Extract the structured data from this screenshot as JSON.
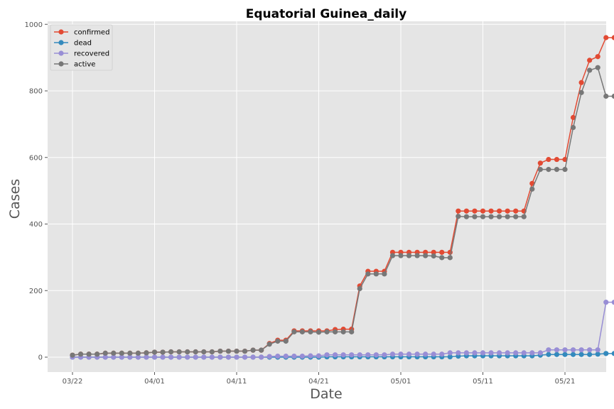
{
  "chart_data": {
    "type": "line",
    "title": "Equatorial Guinea_daily",
    "xlabel": "Date",
    "ylabel": "Cases",
    "ylim": [
      -50,
      1000
    ],
    "yticks": [
      0,
      200,
      400,
      600,
      800,
      1000
    ],
    "x_start": "03/22",
    "x_tick_labels": [
      {
        "label": "03/22",
        "index": 0
      },
      {
        "label": "04/01",
        "index": 10
      },
      {
        "label": "04/11",
        "index": 20
      },
      {
        "label": "04/21",
        "index": 30
      },
      {
        "label": "05/01",
        "index": 40
      },
      {
        "label": "05/11",
        "index": 50
      },
      {
        "label": "05/21",
        "index": 60
      }
    ],
    "grid": true,
    "legend_position": "top-left",
    "series": [
      {
        "name": "confirmed",
        "color": "#E24A33",
        "values": [
          6,
          9,
          9,
          9,
          12,
          12,
          12,
          12,
          12,
          13,
          15,
          15,
          16,
          16,
          16,
          16,
          16,
          16,
          18,
          18,
          18,
          18,
          21,
          21,
          41,
          51,
          51,
          79,
          79,
          79,
          79,
          79,
          83,
          84,
          84,
          214,
          258,
          258,
          258,
          315,
          315,
          315,
          315,
          315,
          315,
          315,
          315,
          439,
          439,
          439,
          439,
          439,
          439,
          439,
          439,
          439,
          522,
          583,
          594,
          594,
          594,
          720,
          825,
          892,
          903,
          960,
          960
        ]
      },
      {
        "name": "dead",
        "color": "#348ABD",
        "values": [
          0,
          0,
          0,
          0,
          0,
          0,
          0,
          0,
          0,
          0,
          0,
          0,
          0,
          0,
          0,
          0,
          0,
          0,
          0,
          0,
          0,
          0,
          0,
          0,
          0,
          0,
          0,
          0,
          0,
          0,
          0,
          1,
          1,
          1,
          1,
          1,
          1,
          1,
          1,
          1,
          1,
          1,
          1,
          1,
          1,
          1,
          1,
          3,
          4,
          4,
          4,
          4,
          4,
          4,
          4,
          4,
          4,
          6,
          8,
          8,
          8,
          8,
          8,
          8,
          9,
          11,
          11
        ]
      },
      {
        "name": "recovered",
        "color": "#988ED5",
        "values": [
          0,
          0,
          0,
          0,
          0,
          0,
          0,
          0,
          0,
          0,
          0,
          0,
          0,
          0,
          0,
          0,
          0,
          0,
          0,
          0,
          0,
          0,
          0,
          0,
          2,
          3,
          3,
          3,
          3,
          4,
          4,
          7,
          7,
          7,
          7,
          7,
          7,
          7,
          7,
          9,
          9,
          9,
          9,
          9,
          9,
          9,
          13,
          13,
          13,
          13,
          13,
          13,
          13,
          13,
          13,
          13,
          13,
          13,
          22,
          22,
          22,
          22,
          22,
          22,
          22,
          165,
          165
        ]
      },
      {
        "name": "active",
        "color": "#777777",
        "values": [
          6,
          9,
          9,
          9,
          12,
          12,
          12,
          12,
          12,
          13,
          15,
          15,
          16,
          16,
          16,
          16,
          16,
          16,
          18,
          18,
          18,
          18,
          21,
          21,
          39,
          48,
          48,
          76,
          76,
          76,
          75,
          76,
          76,
          76,
          76,
          206,
          250,
          250,
          250,
          305,
          305,
          305,
          305,
          305,
          304,
          299,
          299,
          423,
          422,
          422,
          422,
          422,
          422,
          422,
          422,
          422,
          505,
          564,
          564,
          564,
          564,
          690,
          795,
          862,
          870,
          784,
          784
        ]
      }
    ]
  }
}
